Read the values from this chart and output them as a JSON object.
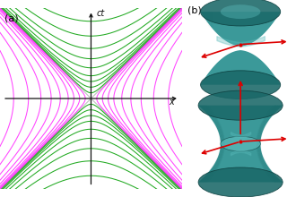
{
  "title_a": "(a)",
  "title_b": "(b)",
  "ct_label": "ct",
  "x_label": "x",
  "background_color": "#ffffff",
  "timelike_color": "#22aa22",
  "spacelike_color": "#ff44ff",
  "lightcone_color": "#bbbbbb",
  "axis_color": "#111111",
  "timelike_values": [
    0.25,
    0.5,
    0.75,
    1.0,
    1.35,
    1.75,
    2.2,
    2.75,
    3.4
  ],
  "spacelike_values": [
    0.25,
    0.5,
    0.75,
    1.0,
    1.35,
    1.75,
    2.2,
    2.75,
    3.4
  ],
  "xlim": [
    -4.0,
    4.0
  ],
  "ylim": [
    -4.0,
    4.0
  ],
  "figsize": [
    3.3,
    2.2
  ],
  "dpi": 100,
  "teal_light": "#5bbcbc",
  "teal_mid": "#2a9090",
  "teal_dark": "#1a6868",
  "teal_darker": "#0d4040",
  "red_color": "#dd0000",
  "arrow_linewidth": 1.1
}
